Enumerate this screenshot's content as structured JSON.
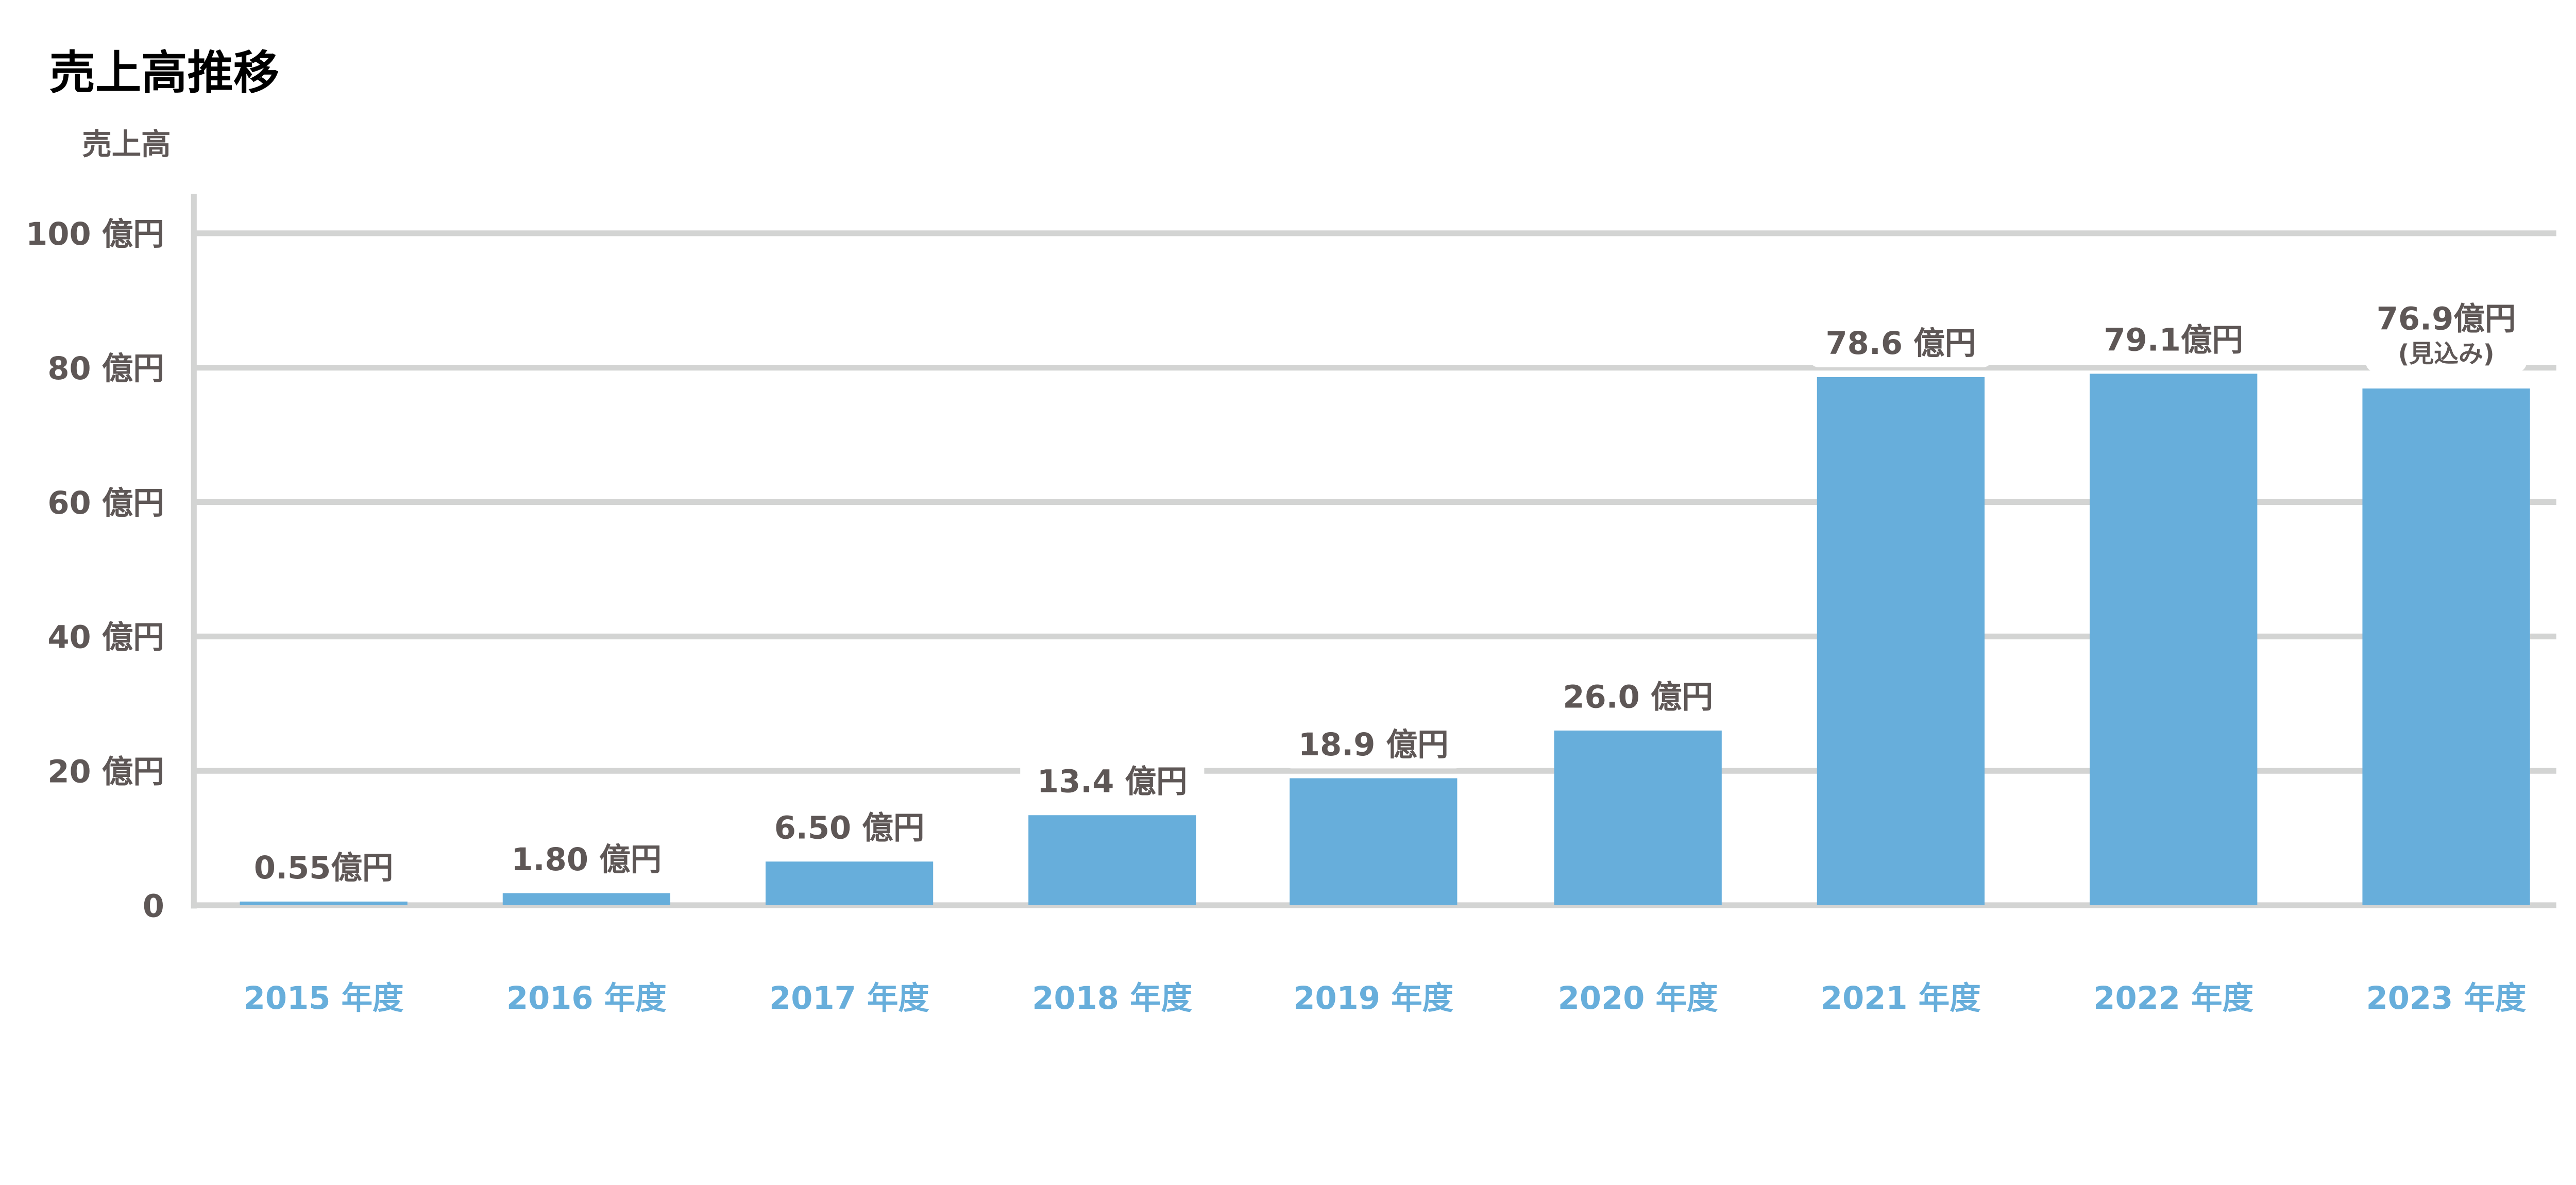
{
  "chart_data": {
    "type": "bar",
    "title": "売上高推移",
    "ylabel": "売上高",
    "xlabel": "",
    "ylim": [
      0,
      100
    ],
    "yticks": [
      0,
      20,
      40,
      60,
      80,
      100
    ],
    "ytick_labels": [
      "0",
      "20 億円",
      "40 億円",
      "60 億円",
      "80 億円",
      "100 億円"
    ],
    "grid": true,
    "categories": [
      "2015 年度",
      "2016 年度",
      "2017 年度",
      "2018 年度",
      "2019 年度",
      "2020 年度",
      "2021 年度",
      "2022 年度",
      "2023 年度"
    ],
    "values": [
      0.55,
      1.8,
      6.5,
      13.4,
      18.9,
      26.0,
      78.6,
      79.1,
      76.9
    ],
    "data_labels": [
      "0.55億円",
      "1.80 億円",
      "6.50 億円",
      "13.4 億円",
      "18.9 億円",
      "26.0 億円",
      "78.6 億円",
      "79.1億円",
      "76.9億円"
    ],
    "annotations": [
      "",
      "",
      "",
      "",
      "",
      "",
      "",
      "",
      "(見込み)"
    ],
    "colors": {
      "bar": "#67aedb",
      "grid": "#d3d4d3",
      "text": "#5e5756",
      "category": "#67aedb"
    }
  }
}
